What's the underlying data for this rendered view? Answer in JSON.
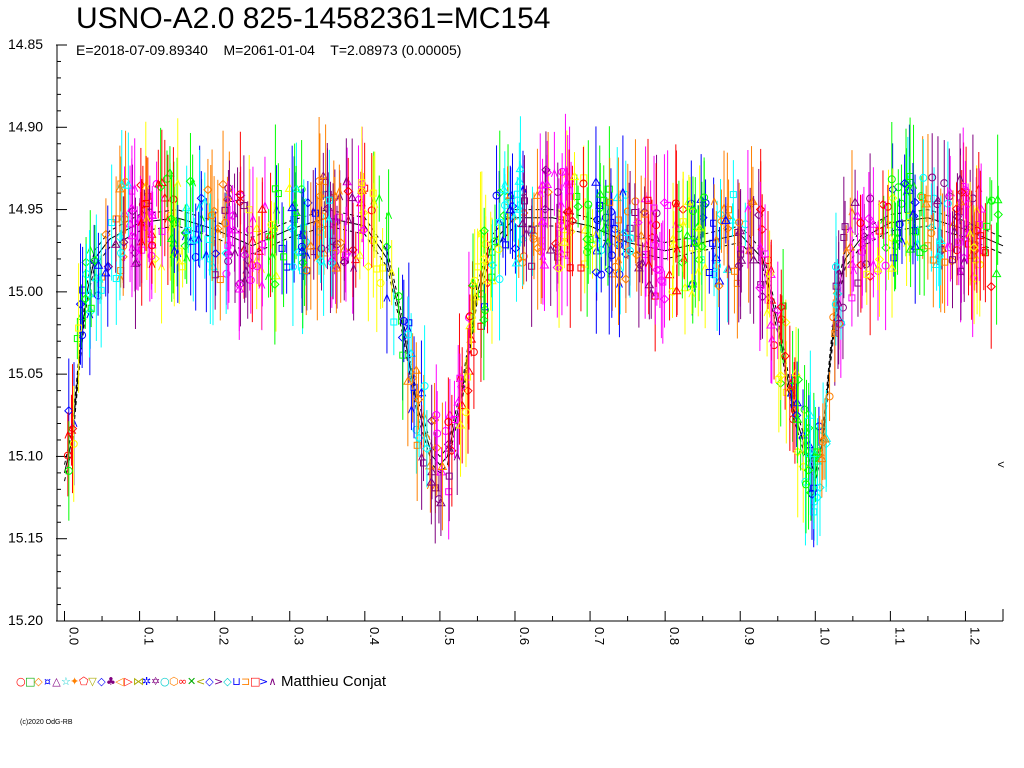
{
  "chart_data": {
    "type": "scatter",
    "title": "USNO-A2.0 825-14582361=MC154",
    "subtitle_parts": [
      "E=2018-07-09.89340",
      "M=2061-01-04",
      "T=2.08973 (0.00005)"
    ],
    "xlabel": "",
    "ylabel": "",
    "xlim": [
      -0.01,
      1.25
    ],
    "ylim": [
      14.85,
      15.2
    ],
    "y_inverted": true,
    "x_ticks": [
      "0.0",
      "0.1",
      "0.2",
      "0.3",
      "0.4",
      "0.5",
      "0.6",
      "0.7",
      "0.8",
      "0.9",
      "1.0",
      "1.1",
      "1.2"
    ],
    "y_ticks": [
      "14.85",
      "14.90",
      "14.95",
      "15.00",
      "15.05",
      "15.10",
      "15.15",
      "15.20"
    ],
    "grid": false,
    "legend_position": "bottom-left",
    "legend_label": "Matthieu Conjat",
    "marker_colors": [
      "#ff0000",
      "#ffff00",
      "#00ff00",
      "#0000ff",
      "#00ffff",
      "#ff8000",
      "#800080",
      "#ff00ff"
    ],
    "model_curve": {
      "x": [
        0.0,
        0.01,
        0.02,
        0.03,
        0.04,
        0.06,
        0.1,
        0.15,
        0.2,
        0.25,
        0.3,
        0.35,
        0.4,
        0.43,
        0.45,
        0.47,
        0.49,
        0.5,
        0.51,
        0.53,
        0.55,
        0.57,
        0.6,
        0.65,
        0.7,
        0.75,
        0.8,
        0.85,
        0.9,
        0.93,
        0.95,
        0.97,
        0.99,
        1.0,
        1.01,
        1.02,
        1.03,
        1.04,
        1.06,
        1.1,
        1.15,
        1.2,
        1.25
      ],
      "y": [
        15.11,
        15.09,
        15.04,
        15.0,
        14.98,
        14.968,
        14.958,
        14.955,
        14.962,
        14.972,
        14.962,
        14.955,
        14.96,
        14.98,
        15.02,
        15.07,
        15.1,
        15.105,
        15.1,
        15.06,
        15.0,
        14.97,
        14.955,
        14.955,
        14.96,
        14.97,
        14.975,
        14.97,
        14.965,
        14.98,
        15.02,
        15.07,
        15.1,
        15.11,
        15.09,
        15.04,
        15.0,
        14.98,
        14.968,
        14.958,
        14.955,
        14.962,
        14.972
      ],
      "band": 0.005
    },
    "annotation_marker": "<",
    "annotation_x": 1.248,
    "annotation_y": 15.105
  },
  "footer": {
    "copyright": "(c)2020 OdG-RB"
  }
}
